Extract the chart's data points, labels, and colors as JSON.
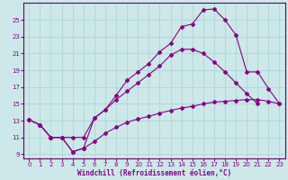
{
  "xlabel": "Windchill (Refroidissement éolien,°C)",
  "bg_color": "#cce8e8",
  "grid_color": "#b0d4d4",
  "line_color": "#880088",
  "spine_color": "#660066",
  "xlim": [
    -0.5,
    23.5
  ],
  "ylim": [
    8.5,
    27
  ],
  "xticks": [
    0,
    1,
    2,
    3,
    4,
    5,
    6,
    7,
    8,
    9,
    10,
    11,
    12,
    13,
    14,
    15,
    16,
    17,
    18,
    19,
    20,
    21,
    22,
    23
  ],
  "yticks": [
    9,
    11,
    13,
    15,
    17,
    19,
    21,
    23,
    25
  ],
  "curve1_x": [
    0,
    1,
    2,
    3,
    4,
    5,
    6,
    7,
    8,
    9,
    10,
    11,
    12,
    13,
    14,
    15,
    16,
    17,
    18,
    19,
    20,
    21,
    22,
    23
  ],
  "curve1_y": [
    13.1,
    12.5,
    11.0,
    11.0,
    11.0,
    11.0,
    13.3,
    14.3,
    16.0,
    17.8,
    18.8,
    19.8,
    21.2,
    22.2,
    24.2,
    24.5,
    26.2,
    26.3,
    25.0,
    23.2,
    18.8,
    18.8,
    16.8,
    15.0
  ],
  "curve2_x": [
    0,
    1,
    2,
    3,
    4,
    5,
    6,
    7,
    8,
    9,
    10,
    11,
    12,
    13,
    14,
    15,
    16,
    17,
    18,
    19,
    20,
    21,
    22,
    23
  ],
  "curve2_y": [
    13.1,
    12.5,
    11.0,
    11.0,
    9.3,
    9.7,
    10.5,
    11.5,
    12.2,
    12.8,
    13.2,
    13.5,
    13.9,
    14.2,
    14.5,
    14.7,
    15.0,
    15.2,
    15.3,
    15.4,
    15.5,
    15.5,
    15.3,
    15.0
  ],
  "curve3_x": [
    0,
    1,
    2,
    3,
    4,
    5,
    6,
    7,
    8,
    9,
    10,
    11,
    12,
    13,
    14,
    15,
    16,
    17,
    18,
    19,
    20,
    21,
    22,
    23
  ],
  "curve3_y": [
    13.1,
    12.5,
    11.0,
    11.0,
    9.3,
    9.7,
    13.3,
    14.3,
    15.5,
    16.5,
    17.5,
    18.5,
    19.5,
    20.8,
    21.5,
    21.5,
    21.0,
    20.0,
    18.8,
    17.5,
    16.2,
    15.0,
    null,
    null
  ],
  "tick_fontsize": 5.0,
  "label_fontsize": 5.5
}
